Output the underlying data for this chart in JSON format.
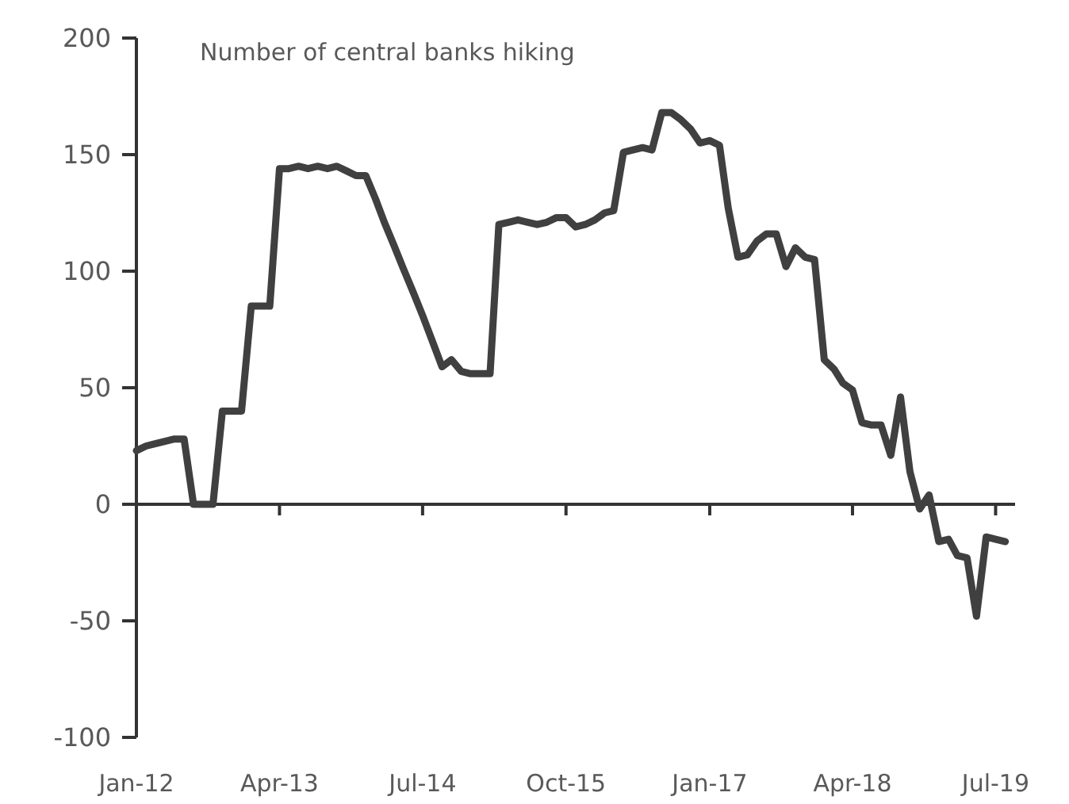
{
  "chart_data": {
    "type": "line",
    "title": "Number of central banks hiking",
    "x": [
      "2012-01",
      "2012-02",
      "2012-03",
      "2012-04",
      "2012-05",
      "2012-06",
      "2012-07",
      "2012-08",
      "2012-09",
      "2012-10",
      "2012-11",
      "2012-12",
      "2013-01",
      "2013-02",
      "2013-03",
      "2013-04",
      "2013-05",
      "2013-06",
      "2013-07",
      "2013-08",
      "2013-09",
      "2013-10",
      "2013-11",
      "2013-12",
      "2014-01",
      "2014-02",
      "2014-03",
      "2014-04",
      "2014-05",
      "2014-06",
      "2014-07",
      "2014-08",
      "2014-09",
      "2014-10",
      "2014-11",
      "2014-12",
      "2015-01",
      "2015-02",
      "2015-03",
      "2015-04",
      "2015-05",
      "2015-06",
      "2015-07",
      "2015-08",
      "2015-09",
      "2015-10",
      "2015-11",
      "2015-12",
      "2016-01",
      "2016-02",
      "2016-03",
      "2016-04",
      "2016-05",
      "2016-06",
      "2016-07",
      "2016-08",
      "2016-09",
      "2016-10",
      "2016-11",
      "2016-12",
      "2017-01",
      "2017-02",
      "2017-03",
      "2017-04",
      "2017-05",
      "2017-06",
      "2017-07",
      "2017-08",
      "2017-09",
      "2017-10",
      "2017-11",
      "2017-12",
      "2018-01",
      "2018-02",
      "2018-03",
      "2018-04",
      "2018-05",
      "2018-06",
      "2018-07",
      "2018-08",
      "2018-09",
      "2018-10",
      "2018-11",
      "2018-12",
      "2019-01",
      "2019-02",
      "2019-03",
      "2019-04",
      "2019-05",
      "2019-06",
      "2019-07",
      "2019-08"
    ],
    "series": [
      {
        "color": "#404040",
        "values": [
          23,
          25,
          26,
          27,
          28,
          28,
          0,
          0,
          0,
          40,
          40,
          40,
          85,
          85,
          85,
          144,
          144,
          145,
          144,
          145,
          144,
          145,
          143,
          141,
          141,
          131,
          121,
          111,
          101,
          91,
          81,
          70,
          59,
          62,
          57,
          56,
          56,
          56,
          120,
          121,
          122,
          121,
          120,
          121,
          123,
          123,
          119,
          120,
          122,
          125,
          126,
          151,
          152,
          153,
          152,
          168,
          168,
          165,
          161,
          155,
          156,
          154,
          127,
          106,
          107,
          113,
          116,
          116,
          102,
          110,
          106,
          105,
          62,
          58,
          52,
          49,
          35,
          34,
          34,
          21,
          46,
          14,
          -2,
          4,
          -16,
          -15,
          -22,
          -23,
          -48,
          -14,
          -15,
          -16
        ]
      }
    ],
    "xlim": [
      "2012-01",
      "2019-09"
    ],
    "xticks": [
      {
        "value": "2012-01",
        "label": "Jan-12"
      },
      {
        "value": "2013-04",
        "label": "Apr-13"
      },
      {
        "value": "2014-07",
        "label": "Jul-14"
      },
      {
        "value": "2015-10",
        "label": "Oct-15"
      },
      {
        "value": "2017-01",
        "label": "Jan-17"
      },
      {
        "value": "2018-04",
        "label": "Apr-18"
      },
      {
        "value": "2019-07",
        "label": "Jul-19"
      }
    ],
    "ylim": [
      -100,
      200
    ],
    "yticks": [
      -100,
      -50,
      0,
      50,
      100,
      150,
      200
    ],
    "marker": "none",
    "line_style": "solid"
  }
}
